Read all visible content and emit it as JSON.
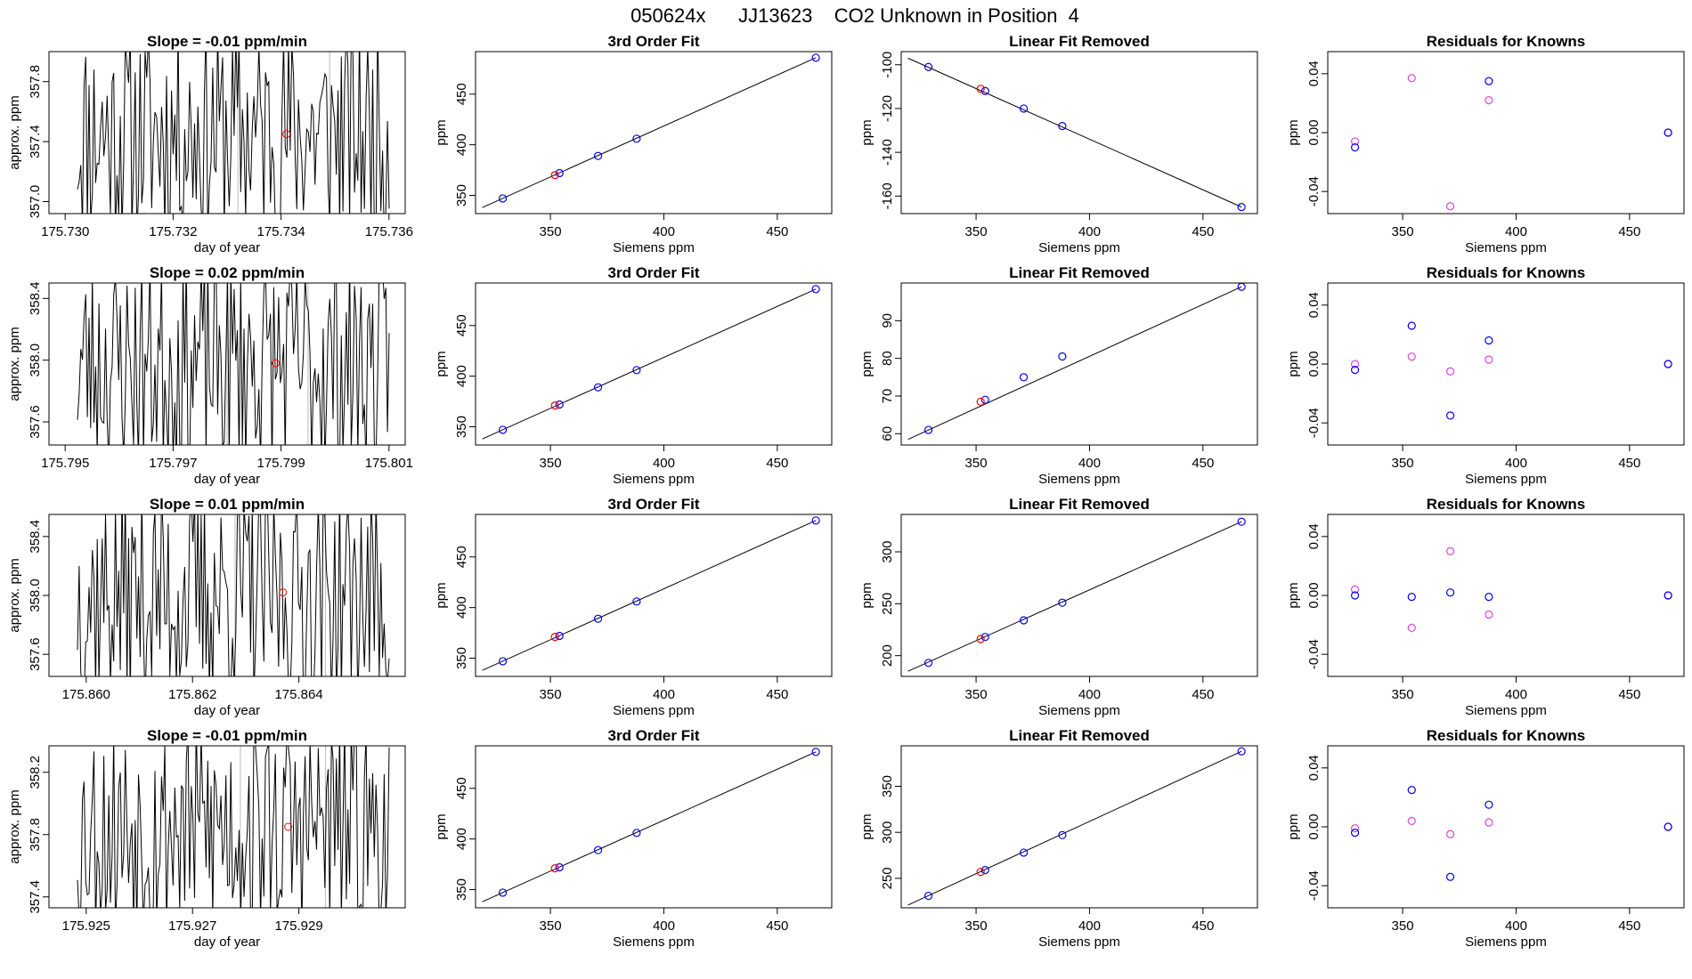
{
  "page_title": "050624x      JJ13623    CO2 Unknown in Position  4",
  "colors": {
    "line": "#000000",
    "known_point": "#0000ff",
    "unknown_point": "#ff0000",
    "residual_alt": "#dd44dd",
    "axis": "#000000",
    "grid": "#bbbbbb"
  },
  "chart_data": [
    {
      "row": 1,
      "panel": "timeseries",
      "type": "line",
      "title": "Slope =  -0.01  ppm/min",
      "xlabel": "day of year",
      "ylabel": "approx. ppm",
      "xlim": [
        175.7297,
        175.7363
      ],
      "ylim": [
        356.92,
        358.0
      ],
      "xticks": [
        175.73,
        175.732,
        175.734,
        175.736
      ],
      "yticks": [
        357.0,
        357.4,
        357.8
      ],
      "vlines": [
        175.7332,
        175.7349
      ],
      "mean_point": {
        "x": 175.7341,
        "y": 357.45
      },
      "seed": 11
    },
    {
      "row": 1,
      "panel": "fit",
      "type": "scatter",
      "title": "3rd Order Fit",
      "xlabel": "Siemens ppm",
      "ylabel": "ppm",
      "xlim": [
        317,
        474
      ],
      "ylim": [
        332,
        492
      ],
      "xticks": [
        350,
        400,
        450
      ],
      "yticks": [
        350,
        400,
        450
      ],
      "line": {
        "x": [
          320,
          467
        ],
        "y": [
          338,
          486
        ]
      },
      "known": [
        {
          "x": 329,
          "y": 347
        },
        {
          "x": 354,
          "y": 372
        },
        {
          "x": 371,
          "y": 389
        },
        {
          "x": 388,
          "y": 406
        },
        {
          "x": 467,
          "y": 486
        }
      ],
      "unknown": [
        {
          "x": 352,
          "y": 370
        }
      ]
    },
    {
      "row": 1,
      "panel": "linear_removed",
      "type": "scatter",
      "title": "Linear Fit Removed",
      "xlabel": "Siemens ppm",
      "ylabel": "ppm",
      "xlim": [
        317,
        474
      ],
      "ylim": [
        -168,
        -94
      ],
      "xticks": [
        350,
        400,
        450
      ],
      "yticks": [
        -160,
        -140,
        -120,
        -100
      ],
      "line": {
        "x": [
          320,
          467
        ],
        "y": [
          -97,
          -165
        ]
      },
      "known": [
        {
          "x": 329,
          "y": -101
        },
        {
          "x": 354,
          "y": -112
        },
        {
          "x": 371,
          "y": -120
        },
        {
          "x": 388,
          "y": -128
        },
        {
          "x": 467,
          "y": -165
        }
      ],
      "unknown": [
        {
          "x": 352,
          "y": -111
        }
      ]
    },
    {
      "row": 1,
      "panel": "residuals",
      "type": "scatter",
      "title": "Residuals for Knowns",
      "xlabel": "Siemens ppm",
      "ylabel": "ppm",
      "xlim": [
        317,
        474
      ],
      "ylim": [
        -0.055,
        0.055
      ],
      "xticks": [
        350,
        400,
        450
      ],
      "yticks": [
        -0.04,
        0.0,
        0.04
      ],
      "known": [
        {
          "x": 329,
          "y": -0.01
        },
        {
          "x": 388,
          "y": 0.035
        },
        {
          "x": 467,
          "y": 0.0
        }
      ],
      "alt": [
        {
          "x": 329,
          "y": -0.006
        },
        {
          "x": 354,
          "y": 0.037
        },
        {
          "x": 371,
          "y": -0.05
        },
        {
          "x": 388,
          "y": 0.022
        },
        {
          "x": 467,
          "y": 0.0
        }
      ]
    },
    {
      "row": 2,
      "panel": "timeseries",
      "type": "line",
      "title": "Slope =  0.02  ppm/min",
      "xlabel": "day of year",
      "ylabel": "approx. ppm",
      "xlim": [
        175.7947,
        175.8013
      ],
      "ylim": [
        357.45,
        358.5
      ],
      "xticks": [
        175.795,
        175.797,
        175.799,
        175.801
      ],
      "yticks": [
        357.6,
        358.0,
        358.4
      ],
      "vlines": [
        175.798,
        175.7995
      ],
      "mean_point": {
        "x": 175.7989,
        "y": 357.98
      },
      "seed": 23
    },
    {
      "row": 2,
      "panel": "fit",
      "type": "scatter",
      "title": "3rd Order Fit",
      "xlabel": "Siemens ppm",
      "ylabel": "ppm",
      "xlim": [
        317,
        474
      ],
      "ylim": [
        332,
        492
      ],
      "xticks": [
        350,
        400,
        450
      ],
      "yticks": [
        350,
        400,
        450
      ],
      "line": {
        "x": [
          320,
          467
        ],
        "y": [
          338,
          486
        ]
      },
      "known": [
        {
          "x": 329,
          "y": 347
        },
        {
          "x": 354,
          "y": 372
        },
        {
          "x": 371,
          "y": 389
        },
        {
          "x": 388,
          "y": 406
        },
        {
          "x": 467,
          "y": 486
        }
      ],
      "unknown": [
        {
          "x": 352,
          "y": 371
        }
      ]
    },
    {
      "row": 2,
      "panel": "linear_removed",
      "type": "scatter",
      "title": "Linear Fit Removed",
      "xlabel": "Siemens ppm",
      "ylabel": "ppm",
      "xlim": [
        317,
        474
      ],
      "ylim": [
        57,
        100
      ],
      "xticks": [
        350,
        400,
        450
      ],
      "yticks": [
        60,
        70,
        80,
        90
      ],
      "line": {
        "x": [
          320,
          467
        ],
        "y": [
          58.5,
          99
        ]
      },
      "known": [
        {
          "x": 329,
          "y": 61
        },
        {
          "x": 354,
          "y": 69
        },
        {
          "x": 371,
          "y": 75
        },
        {
          "x": 388,
          "y": 80.5
        },
        {
          "x": 467,
          "y": 99
        }
      ],
      "unknown": [
        {
          "x": 352,
          "y": 68.5
        }
      ]
    },
    {
      "row": 2,
      "panel": "residuals",
      "type": "scatter",
      "title": "Residuals for Knowns",
      "xlabel": "Siemens ppm",
      "ylabel": "ppm",
      "xlim": [
        317,
        474
      ],
      "ylim": [
        -0.055,
        0.055
      ],
      "xticks": [
        350,
        400,
        450
      ],
      "yticks": [
        -0.04,
        0.0,
        0.04
      ],
      "known": [
        {
          "x": 329,
          "y": -0.004
        },
        {
          "x": 354,
          "y": 0.026
        },
        {
          "x": 371,
          "y": -0.035
        },
        {
          "x": 388,
          "y": 0.016
        },
        {
          "x": 467,
          "y": 0.0
        }
      ],
      "alt": [
        {
          "x": 329,
          "y": 0.0
        },
        {
          "x": 354,
          "y": 0.005
        },
        {
          "x": 371,
          "y": -0.005
        },
        {
          "x": 388,
          "y": 0.003
        },
        {
          "x": 467,
          "y": 0.0
        }
      ]
    },
    {
      "row": 3,
      "panel": "timeseries",
      "type": "line",
      "title": "Slope =  0.01  ppm/min",
      "xlabel": "day of year",
      "ylabel": "approx. ppm",
      "xlim": [
        175.8593,
        175.866
      ],
      "ylim": [
        357.45,
        358.55
      ],
      "xticks": [
        175.86,
        175.862,
        175.864
      ],
      "yticks": [
        357.6,
        358.0,
        358.4
      ],
      "vlines": [
        175.8628,
        175.8645
      ],
      "mean_point": {
        "x": 175.8637,
        "y": 358.02
      },
      "seed": 37
    },
    {
      "row": 3,
      "panel": "fit",
      "type": "scatter",
      "title": "3rd Order Fit",
      "xlabel": "Siemens ppm",
      "ylabel": "ppm",
      "xlim": [
        317,
        474
      ],
      "ylim": [
        332,
        492
      ],
      "xticks": [
        350,
        400,
        450
      ],
      "yticks": [
        350,
        400,
        450
      ],
      "line": {
        "x": [
          320,
          467
        ],
        "y": [
          338,
          486
        ]
      },
      "known": [
        {
          "x": 329,
          "y": 347
        },
        {
          "x": 354,
          "y": 372
        },
        {
          "x": 371,
          "y": 389
        },
        {
          "x": 388,
          "y": 406
        },
        {
          "x": 467,
          "y": 486
        }
      ],
      "unknown": [
        {
          "x": 352,
          "y": 371
        }
      ]
    },
    {
      "row": 3,
      "panel": "linear_removed",
      "type": "scatter",
      "title": "Linear Fit Removed",
      "xlabel": "Siemens ppm",
      "ylabel": "ppm",
      "xlim": [
        317,
        474
      ],
      "ylim": [
        180,
        336
      ],
      "xticks": [
        350,
        400,
        450
      ],
      "yticks": [
        200,
        250,
        300
      ],
      "line": {
        "x": [
          320,
          467
        ],
        "y": [
          185,
          329
        ]
      },
      "known": [
        {
          "x": 329,
          "y": 193
        },
        {
          "x": 354,
          "y": 218
        },
        {
          "x": 371,
          "y": 234
        },
        {
          "x": 388,
          "y": 251
        },
        {
          "x": 467,
          "y": 329
        }
      ],
      "unknown": [
        {
          "x": 352,
          "y": 216
        }
      ]
    },
    {
      "row": 3,
      "panel": "residuals",
      "type": "scatter",
      "title": "Residuals for Knowns",
      "xlabel": "Siemens ppm",
      "ylabel": "ppm",
      "xlim": [
        317,
        474
      ],
      "ylim": [
        -0.055,
        0.055
      ],
      "xticks": [
        350,
        400,
        450
      ],
      "yticks": [
        -0.04,
        0.0,
        0.04
      ],
      "known": [
        {
          "x": 329,
          "y": 0.0
        },
        {
          "x": 354,
          "y": -0.001
        },
        {
          "x": 371,
          "y": 0.002
        },
        {
          "x": 388,
          "y": -0.001
        },
        {
          "x": 467,
          "y": 0.0
        }
      ],
      "alt": [
        {
          "x": 329,
          "y": 0.004
        },
        {
          "x": 354,
          "y": -0.022
        },
        {
          "x": 371,
          "y": 0.03
        },
        {
          "x": 388,
          "y": -0.013
        },
        {
          "x": 467,
          "y": 0.0
        }
      ]
    },
    {
      "row": 4,
      "panel": "timeseries",
      "type": "line",
      "title": "Slope =  -0.01  ppm/min",
      "xlabel": "day of year",
      "ylabel": "approx. ppm",
      "xlim": [
        175.9243,
        175.931
      ],
      "ylim": [
        357.33,
        358.37
      ],
      "xticks": [
        175.925,
        175.927,
        175.929
      ],
      "yticks": [
        357.4,
        357.8,
        358.2
      ],
      "vlines": [
        175.9279,
        175.9295
      ],
      "mean_point": {
        "x": 175.9288,
        "y": 357.85
      },
      "seed": 53
    },
    {
      "row": 4,
      "panel": "fit",
      "type": "scatter",
      "title": "3rd Order Fit",
      "xlabel": "Siemens ppm",
      "ylabel": "ppm",
      "xlim": [
        317,
        474
      ],
      "ylim": [
        332,
        492
      ],
      "xticks": [
        350,
        400,
        450
      ],
      "yticks": [
        350,
        400,
        450
      ],
      "line": {
        "x": [
          320,
          467
        ],
        "y": [
          338,
          486
        ]
      },
      "known": [
        {
          "x": 329,
          "y": 347
        },
        {
          "x": 354,
          "y": 372
        },
        {
          "x": 371,
          "y": 389
        },
        {
          "x": 388,
          "y": 406
        },
        {
          "x": 467,
          "y": 486
        }
      ],
      "unknown": [
        {
          "x": 352,
          "y": 371
        }
      ]
    },
    {
      "row": 4,
      "panel": "linear_removed",
      "type": "scatter",
      "title": "Linear Fit Removed",
      "xlabel": "Siemens ppm",
      "ylabel": "ppm",
      "xlim": [
        317,
        474
      ],
      "ylim": [
        218,
        394
      ],
      "xticks": [
        350,
        400,
        450
      ],
      "yticks": [
        250,
        300,
        350
      ],
      "line": {
        "x": [
          320,
          467
        ],
        "y": [
          221,
          388
        ]
      },
      "known": [
        {
          "x": 329,
          "y": 231
        },
        {
          "x": 354,
          "y": 259
        },
        {
          "x": 371,
          "y": 278
        },
        {
          "x": 388,
          "y": 297
        },
        {
          "x": 467,
          "y": 388
        }
      ],
      "unknown": [
        {
          "x": 352,
          "y": 257
        }
      ]
    },
    {
      "row": 4,
      "panel": "residuals",
      "type": "scatter",
      "title": "Residuals for Knowns",
      "xlabel": "Siemens ppm",
      "ylabel": "ppm",
      "xlim": [
        317,
        474
      ],
      "ylim": [
        -0.055,
        0.055
      ],
      "xticks": [
        350,
        400,
        450
      ],
      "yticks": [
        -0.04,
        0.0,
        0.04
      ],
      "known": [
        {
          "x": 329,
          "y": -0.004
        },
        {
          "x": 354,
          "y": 0.025
        },
        {
          "x": 371,
          "y": -0.034
        },
        {
          "x": 388,
          "y": 0.015
        },
        {
          "x": 467,
          "y": 0.0
        }
      ],
      "alt": [
        {
          "x": 329,
          "y": -0.001
        },
        {
          "x": 354,
          "y": 0.004
        },
        {
          "x": 371,
          "y": -0.005
        },
        {
          "x": 388,
          "y": 0.003
        },
        {
          "x": 467,
          "y": 0.0
        }
      ]
    }
  ]
}
